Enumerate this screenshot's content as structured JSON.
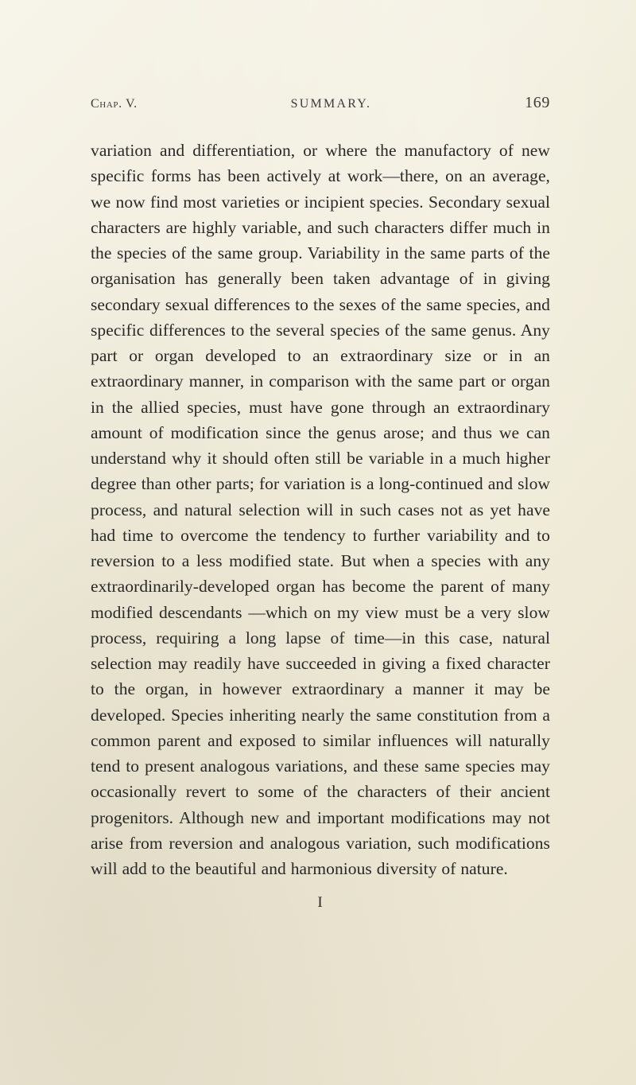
{
  "header": {
    "chapter": "Chap. V.",
    "running_title": "SUMMARY.",
    "page_number": "169"
  },
  "body": {
    "paragraph": "variation and differentiation, or where the manufactory of new specific forms has been actively at work—there, on an average, we now find most varieties or incipient species. Secondary sexual characters are highly vari­able, and such characters differ much in the species of the same group. Variability in the same parts of the organisation has generally been taken advantage of in giving secondary sexual differences to the sexes of the same species, and specific differences to the several species of the same genus. Any part or organ developed to an extraordinary size or in an extraor­dinary manner, in comparison with the same part or organ in the allied species, must have gone through an extraordinary amount of modification since the genus arose; and thus we can understand why it should often still be variable in a much higher degree than other parts; for variation is a long-continued and slow pro­cess, and natural selection will in such cases not as yet have had time to overcome the tendency to further variability and to reversion to a less modified state. But when a species with any extraordinarily-developed organ has become the parent of many modified descendants —which on my view must be a very slow process, requiring a long lapse of time—in this case, natural selection may readily have succeeded in giving a fixed character to the organ, in however extraordinary a manner it may be developed. Species inheriting nearly the same constitution from a common parent and ex­posed to similar influences will naturally tend to present analogous variations, and these same species may occa­sionally revert to some of the characters of their ancient progenitors. Although new and important modifica­tions may not arise from reversion and analogous varia­tion, such modifications will add to the beautiful and harmonious diversity of nature."
  },
  "signature_mark": "I",
  "style": {
    "background_color": "#f5f2e8",
    "text_color": "#282828",
    "header_color": "#3a3a3a",
    "body_fontsize": 21.5,
    "header_fontsize": 16,
    "pageno_fontsize": 20,
    "line_height": 1.5,
    "font_family": "Georgia, 'Times New Roman', serif"
  }
}
